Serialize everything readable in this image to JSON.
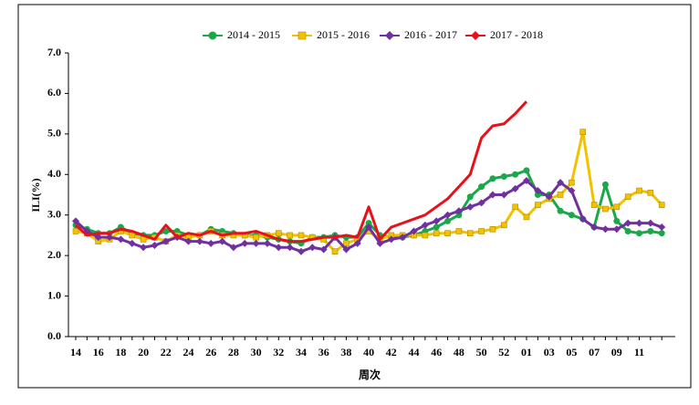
{
  "chart_data": {
    "type": "line",
    "categories": [
      "14",
      null,
      "16",
      null,
      "18",
      null,
      "20",
      null,
      "22",
      null,
      "24",
      null,
      "26",
      null,
      "28",
      null,
      "30",
      null,
      "32",
      null,
      "34",
      null,
      "36",
      null,
      "38",
      null,
      "40",
      null,
      "42",
      null,
      "44",
      null,
      "46",
      null,
      "48",
      null,
      "50",
      null,
      "52",
      null,
      "01",
      null,
      "03",
      null,
      "05",
      null,
      "07",
      null,
      "09",
      null,
      "11",
      null,
      null
    ],
    "series": [
      {
        "name": "2014 - 2015",
        "color": "#1aa84a",
        "marker": "circle",
        "values": [
          2.75,
          2.65,
          2.55,
          2.55,
          2.7,
          2.55,
          2.5,
          2.5,
          2.6,
          2.6,
          2.5,
          2.5,
          2.65,
          2.6,
          2.55,
          2.5,
          2.5,
          2.45,
          2.4,
          2.35,
          2.3,
          2.45,
          2.45,
          2.5,
          2.45,
          2.45,
          2.8,
          2.5,
          2.45,
          2.45,
          2.5,
          2.6,
          2.7,
          2.85,
          3.0,
          3.45,
          3.7,
          3.9,
          3.95,
          4.0,
          4.1,
          3.5,
          3.5,
          3.1,
          3.0,
          2.9,
          2.7,
          3.75,
          2.85,
          2.6,
          2.55,
          2.6,
          2.55
        ]
      },
      {
        "name": "2015 - 2016",
        "color": "#f2c200",
        "marker": "square",
        "values": [
          2.6,
          2.55,
          2.35,
          2.4,
          2.6,
          2.5,
          2.4,
          2.45,
          2.35,
          2.5,
          2.45,
          2.5,
          2.6,
          2.5,
          2.5,
          2.5,
          2.45,
          2.5,
          2.55,
          2.5,
          2.5,
          2.45,
          2.4,
          2.1,
          2.3,
          2.4,
          2.6,
          2.4,
          2.5,
          2.5,
          2.5,
          2.5,
          2.55,
          2.55,
          2.6,
          2.55,
          2.6,
          2.65,
          2.75,
          3.2,
          2.95,
          3.25,
          3.4,
          3.5,
          3.8,
          5.05,
          3.25,
          3.15,
          3.2,
          3.45,
          3.6,
          3.55,
          3.25
        ]
      },
      {
        "name": "2016 - 2017",
        "color": "#7030a0",
        "marker": "diamond",
        "values": [
          2.85,
          2.6,
          2.45,
          2.45,
          2.4,
          2.3,
          2.2,
          2.25,
          2.35,
          2.45,
          2.35,
          2.35,
          2.3,
          2.35,
          2.2,
          2.3,
          2.3,
          2.3,
          2.2,
          2.2,
          2.1,
          2.2,
          2.15,
          2.45,
          2.15,
          2.3,
          2.7,
          2.3,
          2.4,
          2.45,
          2.6,
          2.75,
          2.85,
          3.0,
          3.1,
          3.2,
          3.3,
          3.5,
          3.5,
          3.65,
          3.85,
          3.6,
          3.45,
          3.8,
          3.6,
          2.9,
          2.7,
          2.65,
          2.65,
          2.8,
          2.8,
          2.8,
          2.7
        ]
      },
      {
        "name": "2017 - 2018",
        "color": "#e8101a",
        "marker": "none",
        "values": [
          2.75,
          2.5,
          2.55,
          2.55,
          2.65,
          2.6,
          2.5,
          2.4,
          2.75,
          2.45,
          2.55,
          2.5,
          2.6,
          2.5,
          2.55,
          2.55,
          2.6,
          2.5,
          2.4,
          2.35,
          2.35,
          2.4,
          2.45,
          2.45,
          2.5,
          2.45,
          3.2,
          2.4,
          2.7,
          2.8,
          2.9,
          3.0,
          3.2,
          3.4,
          3.7,
          4.0,
          4.9,
          5.2,
          5.25,
          5.5,
          5.8,
          null,
          null,
          null,
          null,
          null,
          null,
          null,
          null,
          null,
          null,
          null,
          null
        ]
      }
    ],
    "x_label": "周次",
    "y_label": "ILI(%)",
    "ylim": [
      0,
      7
    ],
    "yticks": [
      {
        "value": 0,
        "label": "0.0"
      },
      {
        "value": 1,
        "label": "1.0"
      },
      {
        "value": 2,
        "label": "2.0"
      },
      {
        "value": 3,
        "label": "3.0"
      },
      {
        "value": 4,
        "label": "4.0"
      },
      {
        "value": 5,
        "label": "5.0"
      },
      {
        "value": 6,
        "label": "6.0"
      },
      {
        "value": 7,
        "label": "7.0"
      }
    ],
    "legend": "top",
    "grid": false
  }
}
